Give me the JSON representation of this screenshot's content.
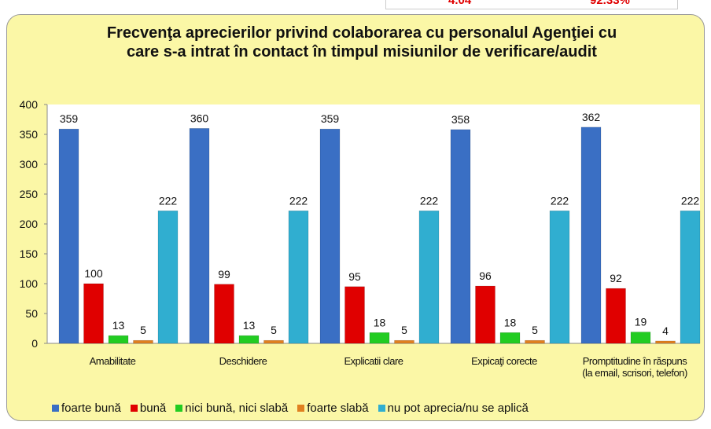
{
  "chart_data": {
    "type": "bar",
    "title": "Frecvenţa aprecierilor privind colaborarea cu personalul Agenţiei cu care s-a intrat în contact în timpul misiunilor de verificare/audit",
    "annotations": [
      "4.04",
      "92.33%"
    ],
    "categories": [
      "Amabilitate",
      "Deschidere",
      "Explicatii clare",
      "Expicaţi corecte",
      "Promptitudine în răspuns\n(la email, scrisori, telefon)"
    ],
    "series": [
      {
        "name": "foarte bună",
        "color": "#3a6fc4",
        "values": [
          359,
          360,
          359,
          358,
          362
        ]
      },
      {
        "name": "bună",
        "color": "#e00000",
        "values": [
          100,
          99,
          95,
          96,
          92
        ]
      },
      {
        "name": "nici bună, nici slabă",
        "color": "#22cc22",
        "values": [
          13,
          13,
          18,
          18,
          19
        ]
      },
      {
        "name": "foarte slabă",
        "color": "#e08020",
        "values": [
          5,
          5,
          5,
          5,
          4
        ]
      },
      {
        "name": "nu pot aprecia/nu se aplică",
        "color": "#30aed0",
        "values": [
          222,
          222,
          222,
          222,
          222
        ]
      }
    ],
    "ylim": [
      0,
      400
    ],
    "yticks": [
      0,
      50,
      100,
      150,
      200,
      250,
      300,
      350,
      400
    ],
    "legend": "bottom"
  }
}
